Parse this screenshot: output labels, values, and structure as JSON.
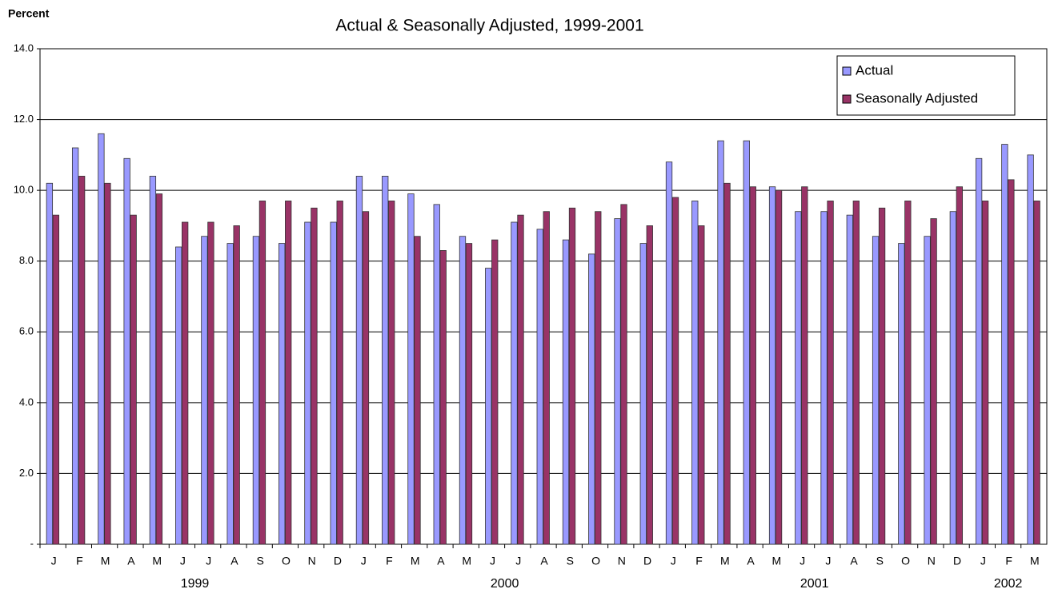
{
  "chart_data": {
    "type": "bar",
    "title": "Actual & Seasonally Adjusted, 1999-2001",
    "y_label": "Percent",
    "categories": [
      "J",
      "F",
      "M",
      "A",
      "M",
      "J",
      "J",
      "A",
      "S",
      "O",
      "N",
      "D",
      "J",
      "F",
      "M",
      "A",
      "M",
      "J",
      "J",
      "A",
      "S",
      "O",
      "N",
      "D",
      "J",
      "F",
      "M",
      "A",
      "M",
      "J",
      "J",
      "A",
      "S",
      "O",
      "N",
      "D",
      "J",
      "F",
      "M"
    ],
    "groups": [
      "1999",
      "2000",
      "2001",
      "2002"
    ],
    "series": [
      {
        "name": "Actual",
        "color": "#9999ff",
        "values": [
          10.2,
          11.2,
          11.6,
          10.9,
          10.4,
          8.4,
          8.7,
          8.5,
          8.7,
          8.5,
          9.1,
          9.1,
          10.4,
          10.4,
          9.9,
          9.6,
          8.7,
          7.8,
          9.1,
          8.9,
          8.6,
          8.2,
          9.2,
          8.5,
          10.8,
          9.7,
          11.4,
          11.4,
          10.1,
          9.4,
          9.4,
          9.3,
          8.7,
          8.5,
          8.7,
          9.4,
          10.9,
          11.3,
          11.0
        ]
      },
      {
        "name": "Seasonally Adjusted",
        "color": "#993366",
        "values": [
          9.3,
          10.4,
          10.2,
          9.3,
          9.9,
          9.1,
          9.1,
          9.0,
          9.7,
          9.7,
          9.5,
          9.7,
          9.4,
          9.7,
          8.7,
          8.3,
          8.5,
          8.6,
          9.3,
          9.4,
          9.5,
          9.4,
          9.6,
          9.0,
          9.8,
          9.0,
          10.2,
          10.1,
          10.0,
          10.1,
          9.7,
          9.7,
          9.5,
          9.7,
          9.2,
          10.1,
          9.7,
          10.3,
          9.7
        ]
      }
    ],
    "ylim": [
      0,
      14
    ],
    "yticks": [
      {
        "value": 0,
        "label": "-"
      },
      {
        "value": 2,
        "label": "2.0"
      },
      {
        "value": 4,
        "label": "4.0"
      },
      {
        "value": 6,
        "label": "6.0"
      },
      {
        "value": 8,
        "label": "8.0"
      },
      {
        "value": 10,
        "label": "10.0"
      },
      {
        "value": 12,
        "label": "12.0"
      },
      {
        "value": 14,
        "label": "14.0"
      }
    ],
    "grid": true,
    "legend": "top-right"
  }
}
